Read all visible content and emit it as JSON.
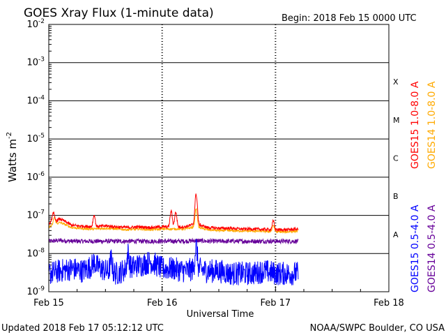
{
  "chart_data": {
    "type": "line",
    "title": "GOES Xray Flux (1-minute data)",
    "begin_label": "Begin:  2018 Feb 15 0000 UTC",
    "ylabel": "Watts m",
    "ylabel_sup": "-2",
    "xlabel": "Universal Time",
    "y_scale": "log",
    "ylim": [
      1e-09,
      0.01
    ],
    "y_ticks": [
      {
        "base": "10",
        "exp": "-9",
        "value": 1e-09
      },
      {
        "base": "10",
        "exp": "-8",
        "value": 1e-08
      },
      {
        "base": "10",
        "exp": "-7",
        "value": 1e-07
      },
      {
        "base": "10",
        "exp": "-6",
        "value": 1e-06
      },
      {
        "base": "10",
        "exp": "-5",
        "value": 1e-05
      },
      {
        "base": "10",
        "exp": "-4",
        "value": 0.0001
      },
      {
        "base": "10",
        "exp": "-3",
        "value": 0.001
      },
      {
        "base": "10",
        "exp": "-2",
        "value": 0.01
      }
    ],
    "x_ticks": [
      "Feb 15",
      "Feb 16",
      "Feb 17",
      "Feb 18"
    ],
    "xlim_days": [
      0,
      3
    ],
    "flare_classes": [
      {
        "label": "X",
        "lower": 0.0001
      },
      {
        "label": "M",
        "lower": 1e-05
      },
      {
        "label": "C",
        "lower": 1e-06
      },
      {
        "label": "B",
        "lower": 1e-07
      },
      {
        "label": "A",
        "lower": 1e-08
      }
    ],
    "series": [
      {
        "name": "GOES15 1.0-8.0 A",
        "color": "#ff0000",
        "x": [
          0,
          0.1,
          0.2,
          0.3,
          0.4,
          0.5,
          0.6,
          0.7,
          0.8,
          0.9,
          1.0,
          1.1,
          1.2,
          1.3,
          1.4,
          1.5,
          1.6,
          1.7,
          1.8,
          1.9,
          2.0,
          2.1,
          2.2
        ],
        "y": [
          6e-08,
          8e-08,
          5.5e-08,
          5.2e-08,
          5e-08,
          5.3e-08,
          5e-08,
          4.8e-08,
          5e-08,
          4.8e-08,
          5e-08,
          5e-08,
          5e-08,
          6e-08,
          4.8e-08,
          4.6e-08,
          4.6e-08,
          4.4e-08,
          4.4e-08,
          4.3e-08,
          4.2e-08,
          4.2e-08,
          4.4e-08
        ],
        "peaks": [
          [
            0.04,
            1.2e-07
          ],
          [
            0.4,
            1e-07
          ],
          [
            1.08,
            1.3e-07
          ],
          [
            1.12,
            1.2e-07
          ],
          [
            1.3,
            3.5e-07
          ],
          [
            1.98,
            7e-08
          ]
        ]
      },
      {
        "name": "GOES14 1.0-8.0 A",
        "color": "#ffaa00",
        "x": [
          0,
          0.1,
          0.2,
          0.3,
          0.4,
          0.5,
          0.6,
          0.7,
          0.8,
          0.9,
          1.0,
          1.1,
          1.2,
          1.3,
          1.4,
          1.5,
          1.6,
          1.7,
          1.8,
          1.9,
          2.0,
          2.1,
          2.2
        ],
        "y": [
          5e-08,
          6.5e-08,
          4.8e-08,
          4.5e-08,
          4.4e-08,
          4.6e-08,
          4.4e-08,
          4.2e-08,
          4.4e-08,
          4.2e-08,
          4.4e-08,
          4.4e-08,
          4.4e-08,
          5e-08,
          4.2e-08,
          4e-08,
          4e-08,
          3.9e-08,
          3.9e-08,
          3.8e-08,
          3.7e-08,
          3.7e-08,
          3.9e-08
        ],
        "peaks": [
          [
            0.05,
            9e-08
          ],
          [
            1.3,
            1.5e-07
          ],
          [
            1.98,
            5.5e-08
          ]
        ]
      },
      {
        "name": "GOES15 0.5-4.0 A",
        "color": "#0000ff",
        "x": [
          0,
          0.1,
          0.2,
          0.3,
          0.4,
          0.5,
          0.6,
          0.7,
          0.8,
          0.9,
          1.0,
          1.1,
          1.2,
          1.3,
          1.4,
          1.5,
          1.6,
          1.7,
          1.8,
          1.9,
          2.0,
          2.1,
          2.2
        ],
        "y": [
          3e-09,
          3.5e-09,
          4e-09,
          3.5e-09,
          5e-09,
          3.5e-09,
          3e-09,
          4e-09,
          5e-09,
          6e-09,
          4e-09,
          4e-09,
          3.5e-09,
          4e-09,
          3.5e-09,
          3.5e-09,
          3e-09,
          3e-09,
          3e-09,
          3.5e-09,
          3e-09,
          3e-09,
          3e-09
        ],
        "peaks": [
          [
            0.4,
            6e-09
          ],
          [
            0.55,
            7e-09
          ],
          [
            0.7,
            1e-08
          ],
          [
            1.3,
            1.5e-08
          ]
        ]
      },
      {
        "name": "GOES14 0.5-4.0 A",
        "color": "#660099",
        "x": [
          0,
          0.1,
          0.2,
          0.3,
          0.4,
          0.5,
          0.6,
          0.7,
          0.8,
          0.9,
          1.0,
          1.1,
          1.2,
          1.3,
          1.4,
          1.5,
          1.6,
          1.7,
          1.8,
          1.9,
          2.0,
          2.1,
          2.2
        ],
        "y": [
          2.1e-08,
          2.2e-08,
          2.1e-08,
          2.1e-08,
          2.1e-08,
          2.1e-08,
          2.1e-08,
          2.1e-08,
          2.1e-08,
          2.1e-08,
          2.1e-08,
          2.1e-08,
          2.1e-08,
          2.2e-08,
          2.1e-08,
          2.1e-08,
          2.1e-08,
          2.1e-08,
          2.1e-08,
          2.1e-08,
          2.1e-08,
          2.1e-08,
          2.1e-08
        ],
        "peaks": []
      }
    ],
    "legend_placement": "right-vertical",
    "grid": true
  },
  "footer": {
    "updated": "Updated 2018 Feb 17 05:12:12 UTC",
    "credit": "NOAA/SWPC Boulder, CO USA"
  }
}
